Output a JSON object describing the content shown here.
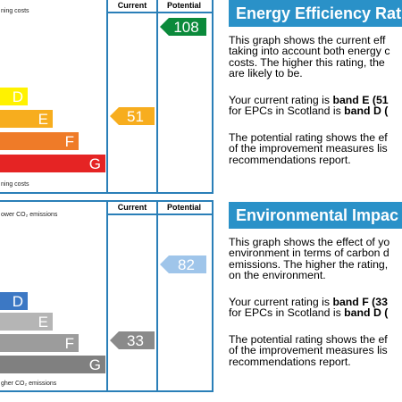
{
  "energy": {
    "caption_top": "ning costs",
    "caption_bottom": "ning costs",
    "col_current": "Current",
    "col_potential": "Potential",
    "bands": [
      {
        "letter": "D",
        "color": "#fff200"
      },
      {
        "letter": "E",
        "color": "#f7ad1e"
      },
      {
        "letter": "F",
        "color": "#ef7b28"
      },
      {
        "letter": "G",
        "color": "#e52424"
      }
    ],
    "current": {
      "value": "51",
      "color": "#f7ad1e"
    },
    "potential": {
      "value": "108",
      "color": "#0b8a3b"
    },
    "heading": "Energy Efficiency Rat",
    "p1": "This graph shows the current eff\ntaking into account both energy c\ncosts. The higher this rating, the\nare likely to be.",
    "p2_pre": "Your current rating is ",
    "p2_bold": "band E (51",
    "p2_line2_pre": "for EPCs in Scotland is ",
    "p2_line2_bold": "band D (",
    "p3": "The potential rating shows the ef\nof the improvement measures lis\nrecommendations report."
  },
  "environment": {
    "caption_top": "ower CO₂ emissions",
    "caption_bottom": "gher CO₂ emissions",
    "col_current": "Current",
    "col_potential": "Potential",
    "bands": [
      {
        "letter": "D",
        "color": "#3c78c4"
      },
      {
        "letter": "E",
        "color": "#b5b5b5"
      },
      {
        "letter": "F",
        "color": "#9c9c9c"
      },
      {
        "letter": "G",
        "color": "#808080"
      }
    ],
    "current": {
      "value": "33",
      "color": "#8a8a8a"
    },
    "potential": {
      "value": "82",
      "color": "#9fc5ea"
    },
    "heading": "Environmental Impac",
    "p1": "This graph shows the effect of yo\nenvironment in terms of carbon d\nemissions. The higher the rating,\non the environment.",
    "p2_pre": "Your current rating is ",
    "p2_bold": "band F (33",
    "p2_line2_pre": "for EPCs in Scotland is ",
    "p2_line2_bold": "band D (",
    "p3": "The potential rating shows the ef\nof the improvement measures lis\nrecommendations report."
  }
}
